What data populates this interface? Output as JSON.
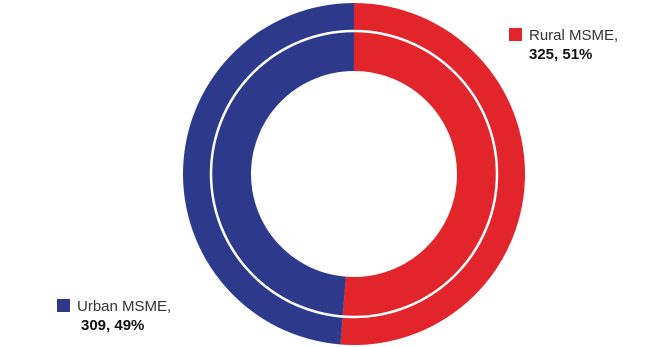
{
  "chart_data": {
    "type": "pie",
    "variant": "donut",
    "title": "",
    "categories": [
      "Rural MSME",
      "Urban MSME"
    ],
    "values": [
      325,
      309
    ],
    "percents": [
      51,
      49
    ],
    "colors": [
      "#e2252b",
      "#2d3a8c"
    ],
    "legend": [
      {
        "label": "Rural MSME,",
        "value_text": "325, 51%",
        "color": "#e2252b"
      },
      {
        "label": "Urban MSME,",
        "value_text": "309, 49%",
        "color": "#2d3a8c"
      }
    ],
    "legend_placement": "beside-slices"
  }
}
